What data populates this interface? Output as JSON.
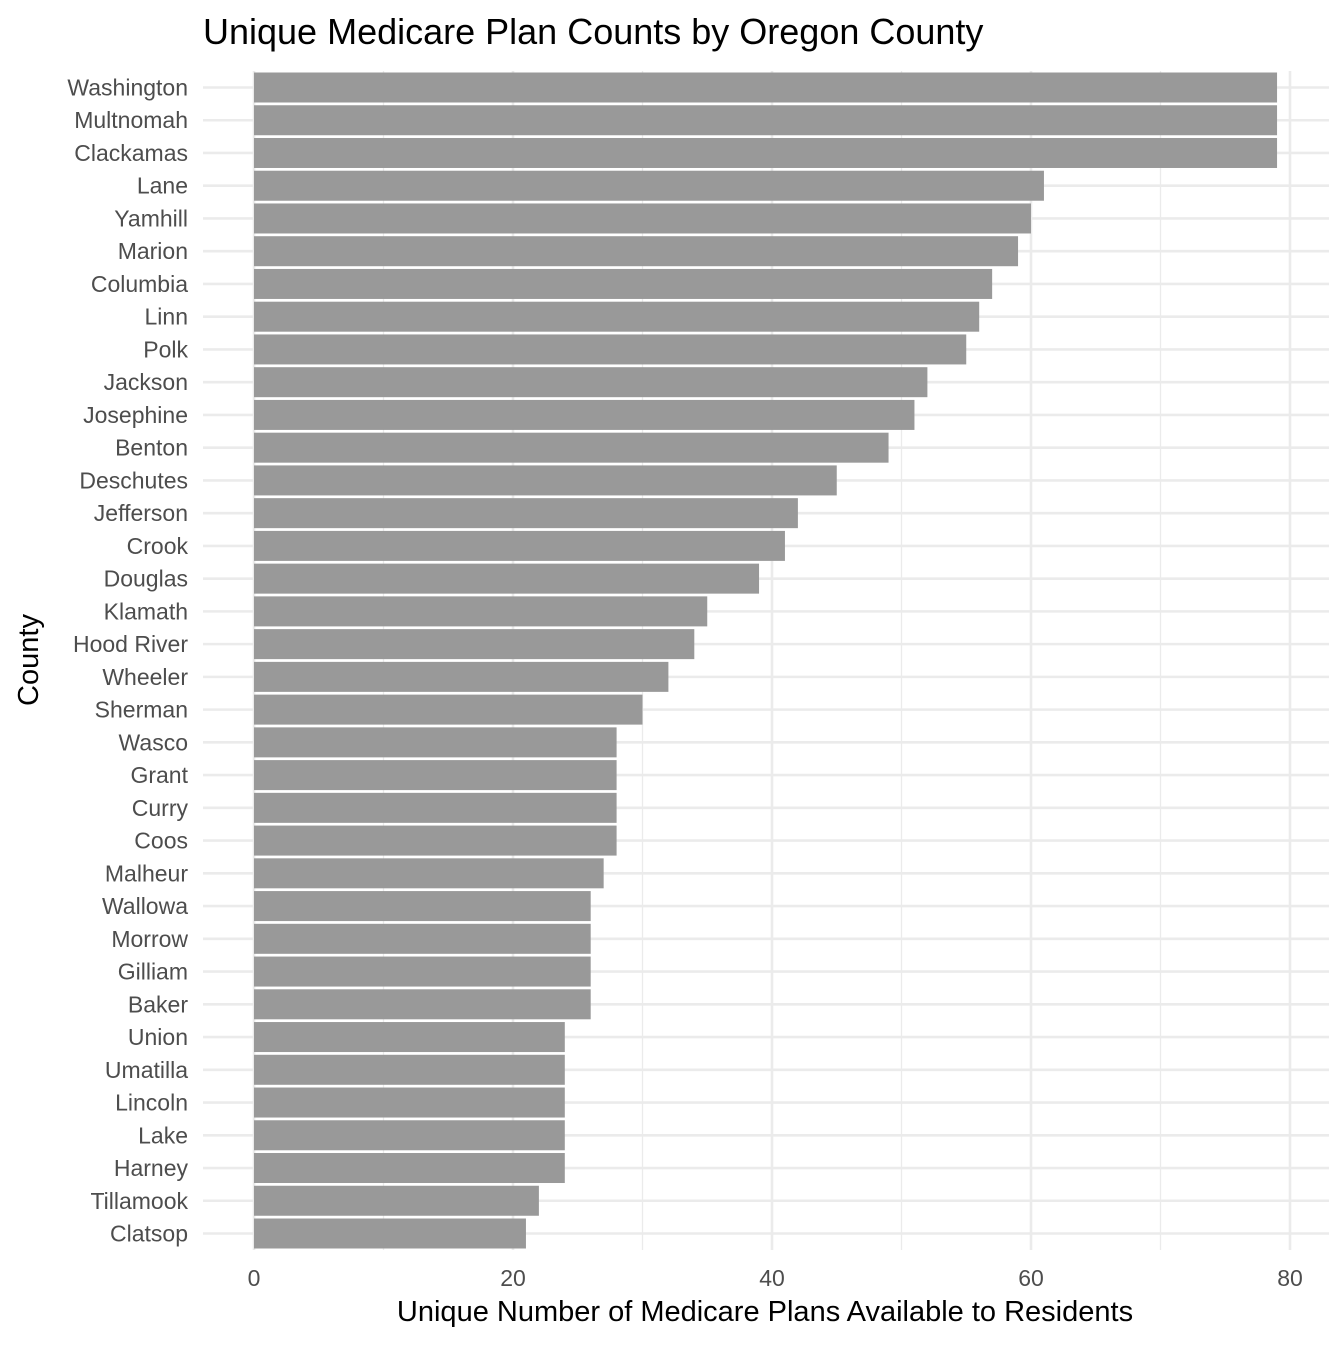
{
  "chart_data": {
    "type": "bar",
    "orientation": "horizontal",
    "title": "Unique Medicare Plan Counts by Oregon County",
    "xlabel": "Unique Number of Medicare Plans Available to Residents",
    "ylabel": "County",
    "xlim": [
      0,
      80
    ],
    "x_ticks": [
      "0",
      "20",
      "40",
      "60",
      "80"
    ],
    "grid": true,
    "bar_color": "#999999",
    "categories": [
      "Washington",
      "Multnomah",
      "Clackamas",
      "Lane",
      "Yamhill",
      "Marion",
      "Columbia",
      "Linn",
      "Polk",
      "Jackson",
      "Josephine",
      "Benton",
      "Deschutes",
      "Jefferson",
      "Crook",
      "Douglas",
      "Klamath",
      "Hood River",
      "Wheeler",
      "Sherman",
      "Wasco",
      "Grant",
      "Curry",
      "Coos",
      "Malheur",
      "Wallowa",
      "Morrow",
      "Gilliam",
      "Baker",
      "Union",
      "Umatilla",
      "Lincoln",
      "Lake",
      "Harney",
      "Tillamook",
      "Clatsop"
    ],
    "values": [
      79,
      79,
      79,
      61,
      60,
      59,
      57,
      56,
      55,
      52,
      51,
      49,
      45,
      42,
      41,
      39,
      35,
      34,
      32,
      30,
      28,
      28,
      28,
      28,
      27,
      26,
      26,
      26,
      26,
      24,
      24,
      24,
      24,
      24,
      22,
      21
    ]
  }
}
